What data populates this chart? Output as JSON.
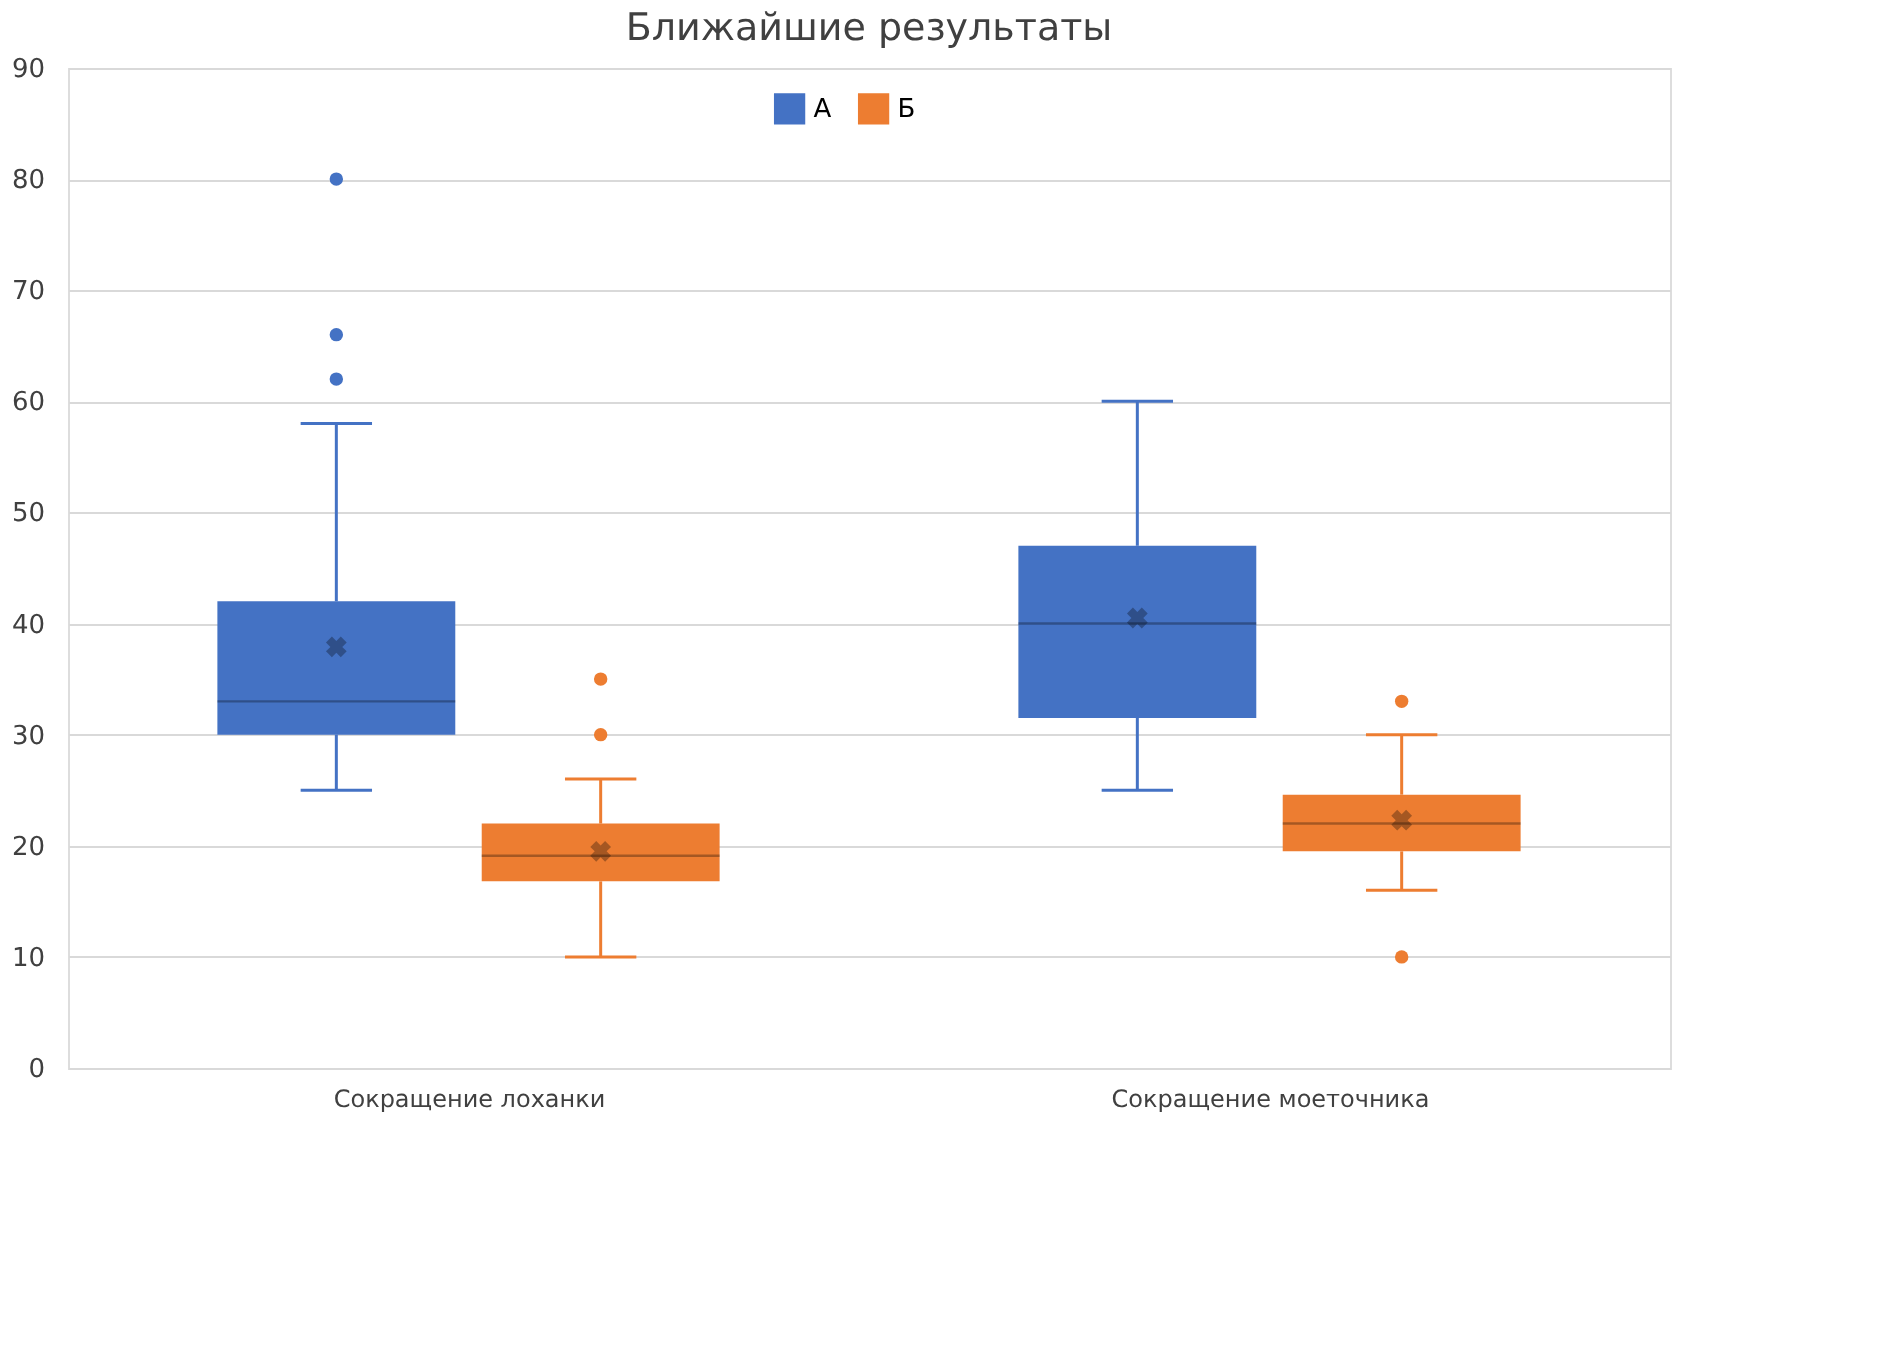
{
  "chart_data": {
    "type": "box",
    "title": "Ближайшие результаты",
    "categories": [
      "Сокращение лоханки",
      "Сокращение моеточника"
    ],
    "series": [
      {
        "name": "А",
        "color": "#4472c4",
        "boxes": [
          {
            "low": 25,
            "q1": 30,
            "median": 33,
            "q3": 42,
            "high": 58,
            "mean": 37.9,
            "outliers": [
              62,
              66,
              80
            ]
          },
          {
            "low": 25,
            "q1": 31.5,
            "median": 40,
            "q3": 47,
            "high": 60,
            "mean": 40.5
          }
        ]
      },
      {
        "name": "Б",
        "color": "#ed7d31",
        "boxes": [
          {
            "low": 10,
            "q1": 16.8,
            "median": 19.1,
            "q3": 22,
            "high": 26,
            "mean": 19.5,
            "outliers": [
              30,
              35
            ]
          },
          {
            "low": 16,
            "q1": 19.5,
            "median": 22,
            "q3": 24.6,
            "high": 30,
            "mean": 22.3,
            "outliers": [
              10,
              33
            ]
          }
        ]
      }
    ],
    "ylim": [
      0,
      90
    ],
    "yticks": [
      0,
      10,
      20,
      30,
      40,
      50,
      60,
      70,
      80,
      90
    ],
    "grid": "y",
    "legend": "top"
  }
}
